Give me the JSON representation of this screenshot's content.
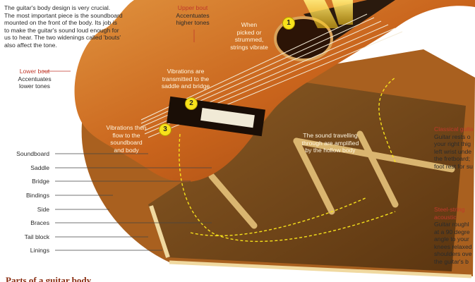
{
  "intro": {
    "line1": "The guitar's body design is very crucial.",
    "line2": "The most important piece is the soundboard",
    "line3": "mounted on the front of the body. Its job is",
    "line4": "to make the guitar's sound loud enough for",
    "line5": "us to hear. The two widenings called 'bouts'",
    "line6": "also affect the tone."
  },
  "upper_bout": {
    "title": "Upper bout",
    "line1": "Accentuates",
    "line2": "higher tones"
  },
  "lower_bout": {
    "title": "Lower bout",
    "line1": "Accentuates",
    "line2": "lower tones"
  },
  "steps": [
    {
      "number": "1",
      "line1": "When",
      "line2": "picked or",
      "line3": "strummed,",
      "line4": "strings vibrate"
    },
    {
      "number": "2",
      "line1": "Vibrations are",
      "line2": "transmitted to the",
      "line3": "saddle and bridge"
    },
    {
      "number": "3",
      "line1": "Vibrations then",
      "line2": "flow to the",
      "line3": "soundboard",
      "line4": "and body"
    }
  ],
  "hollow_body": {
    "line1": "The sound travelling",
    "line2": "through are amplified",
    "line3": "by the hollow body"
  },
  "parts": [
    "Soundboard",
    "Saddle",
    "Bridge",
    "Bindings",
    "Side",
    "Braces",
    "Tail block",
    "Linings"
  ],
  "classical": {
    "title": "Classical guita",
    "line1": "Guitar rests o",
    "line2": "your right thig",
    "line3": "left wrist unde",
    "line4": "the fretboard;",
    "line5": "foot rest for su"
  },
  "steel": {
    "title1": "Steel-string",
    "title2": "acoustic",
    "line1": "Guitar roughl",
    "line2": "at a 90 degre",
    "line3": "angle to your",
    "line4": "knees relaxed",
    "line5": "shoulders ove",
    "line6": "the guitar's b"
  },
  "bottom_heading": "Parts of a guitar body",
  "colors": {
    "wood": "#c8621a",
    "wood_light": "#e08a3a",
    "accent_red": "#c0392b",
    "badge": "#f7e21b"
  }
}
